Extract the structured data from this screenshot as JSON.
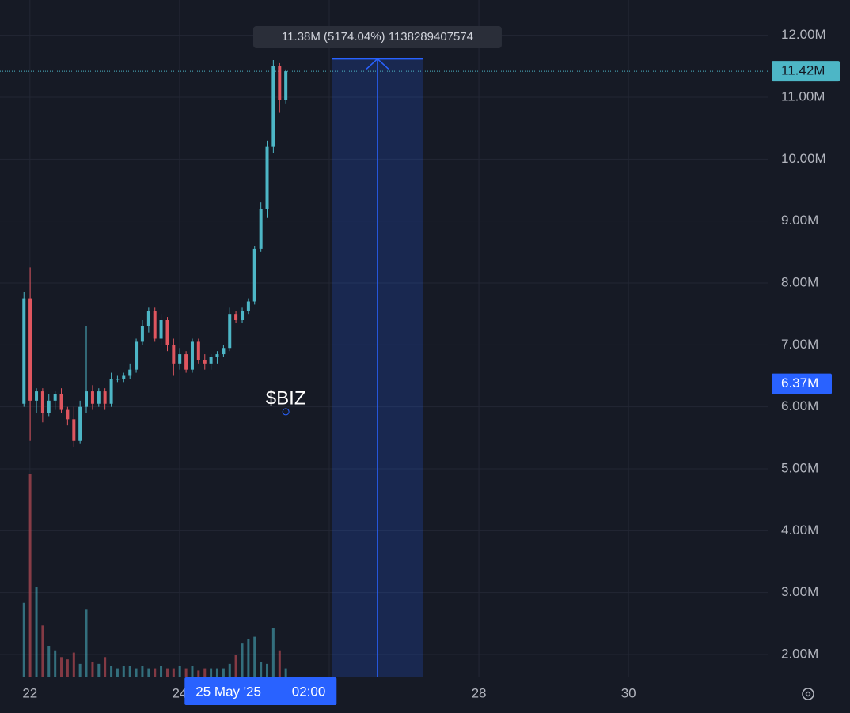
{
  "chart_data": {
    "type": "candlestick",
    "annotation": "$BIZ",
    "annotation_point": [
      25.42,
      5920000
    ],
    "x": [
      21.92,
      22.003,
      22.087,
      22.17,
      22.253,
      22.337,
      22.42,
      22.503,
      22.587,
      22.67,
      22.753,
      22.837,
      22.92,
      23.003,
      23.087,
      23.17,
      23.253,
      23.337,
      23.42,
      23.503,
      23.587,
      23.67,
      23.753,
      23.837,
      23.92,
      24.003,
      24.087,
      24.17,
      24.253,
      24.337,
      24.42,
      24.503,
      24.587,
      24.67,
      24.753,
      24.837,
      24.92,
      25.003,
      25.087,
      25.17,
      25.253,
      25.337,
      25.42
    ],
    "open": [
      6050000,
      7750000,
      6100000,
      6250000,
      5900000,
      6100000,
      6200000,
      5950000,
      5800000,
      5450000,
      6000000,
      6250000,
      6050000,
      6250000,
      6050000,
      6450000,
      6450000,
      6500000,
      6600000,
      7050000,
      7300000,
      7550000,
      7100000,
      7400000,
      7000000,
      6700000,
      6850000,
      6600000,
      7050000,
      6750000,
      6700000,
      6800000,
      6850000,
      6950000,
      7500000,
      7400000,
      7550000,
      7700000,
      8550000,
      9200000,
      10200000,
      11500000,
      10950000
    ],
    "high": [
      7850000,
      8250000,
      6300000,
      6300000,
      6200000,
      6250000,
      6300000,
      6000000,
      6000000,
      6100000,
      7300000,
      6350000,
      6300000,
      6300000,
      6550000,
      6500000,
      6550000,
      6700000,
      7100000,
      7400000,
      7600000,
      7600000,
      7500000,
      7450000,
      7100000,
      6950000,
      6900000,
      7100000,
      7100000,
      6850000,
      6850000,
      6900000,
      7000000,
      7600000,
      7550000,
      7600000,
      7750000,
      8600000,
      9300000,
      10300000,
      11600000,
      11550000,
      11450000
    ],
    "low": [
      6000000,
      5450000,
      5900000,
      5750000,
      5850000,
      5950000,
      5900000,
      5700000,
      5350000,
      5400000,
      5900000,
      5950000,
      6000000,
      5950000,
      6000000,
      6400000,
      6400000,
      6450000,
      6550000,
      7000000,
      7200000,
      7050000,
      7000000,
      6900000,
      6500000,
      6600000,
      6550000,
      6550000,
      6700000,
      6600000,
      6600000,
      6700000,
      6800000,
      6900000,
      7350000,
      7350000,
      7500000,
      7650000,
      8500000,
      9050000,
      10100000,
      10750000,
      10900000
    ],
    "close": [
      7750000,
      6100000,
      6250000,
      5900000,
      6100000,
      6200000,
      5950000,
      5800000,
      5450000,
      6000000,
      6250000,
      6050000,
      6250000,
      6050000,
      6450000,
      6450000,
      6500000,
      6600000,
      7050000,
      7300000,
      7550000,
      7100000,
      7400000,
      7000000,
      6700000,
      6850000,
      6600000,
      7050000,
      6750000,
      6700000,
      6800000,
      6850000,
      6950000,
      7500000,
      7400000,
      7550000,
      7700000,
      8550000,
      9200000,
      10200000,
      11500000,
      10950000,
      11420000
    ],
    "volume": [
      33,
      90,
      40,
      23,
      14,
      12,
      9,
      8,
      11,
      6,
      30,
      7,
      6,
      9,
      5,
      4,
      5,
      5,
      4,
      5,
      4,
      4,
      5,
      4,
      4,
      5,
      4,
      5,
      3,
      4,
      4,
      4,
      4,
      6,
      10,
      15,
      17,
      18,
      7,
      6,
      22,
      12,
      4
    ],
    "up_color": "#4db6c6",
    "down_color": "#e0565f",
    "xlim": [
      21.6,
      31.86
    ],
    "xticks": [
      22,
      24,
      26,
      28,
      30
    ],
    "ylim": [
      1630000,
      12570000
    ],
    "yticks": [
      {
        "value": 2000000,
        "label": "2.00M"
      },
      {
        "value": 3000000,
        "label": "3.00M"
      },
      {
        "value": 4000000,
        "label": "4.00M"
      },
      {
        "value": 5000000,
        "label": "5.00M"
      },
      {
        "value": 6000000,
        "label": "6.00M"
      },
      {
        "value": 7000000,
        "label": "7.00M"
      },
      {
        "value": 8000000,
        "label": "8.00M"
      },
      {
        "value": 9000000,
        "label": "9.00M"
      },
      {
        "value": 10000000,
        "label": "10.00M"
      },
      {
        "value": 11000000,
        "label": "11.00M"
      },
      {
        "value": 12000000,
        "label": "12.00M"
      }
    ],
    "grid": true,
    "last_price": {
      "value": 11420000,
      "label": "11.42M"
    },
    "marker_price": {
      "value": 6370000,
      "label": "6.37M"
    },
    "measure": {
      "x": [
        26.04,
        27.25
      ],
      "top": 11620000,
      "label": "11.38M (5174.04%) 1138289407574"
    },
    "crosshair": {
      "x": 25.083,
      "date": "25 May '25",
      "time": "02:00"
    }
  }
}
